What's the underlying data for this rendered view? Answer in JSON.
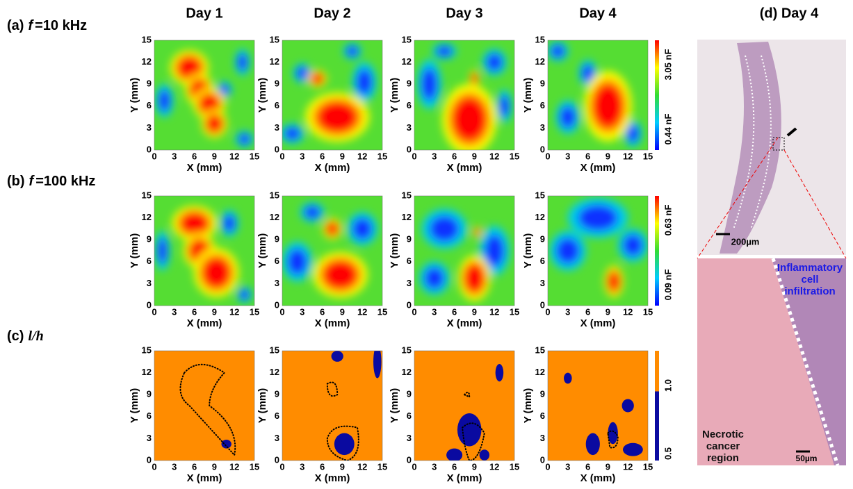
{
  "columns": [
    "Day 1",
    "Day 2",
    "Day 3",
    "Day 4"
  ],
  "panel_d_title": "(d) Day 4",
  "rows": [
    {
      "label": "(a)",
      "variable": "f",
      "setting": "=10 kHz",
      "colorbar": [
        "3.05 nF",
        "0.44 nF"
      ]
    },
    {
      "label": "(b)",
      "variable": "f",
      "setting": "=100 kHz",
      "colorbar": [
        "0.63 nF",
        "0.09 nF"
      ]
    },
    {
      "label": "(c)",
      "variable": "l/h",
      "colorbar": [
        "1.0",
        "0.5"
      ]
    }
  ],
  "axes": {
    "x_label": "X (mm)",
    "y_label": "Y (mm)",
    "ticks": [
      0,
      3,
      6,
      9,
      12,
      15
    ]
  },
  "micrograph": {
    "scale_top": "200µm",
    "region_top": [
      "Inflammatory",
      "cell",
      "infiltration"
    ],
    "region_bottom": [
      "Necrotic",
      "cancer",
      "region"
    ],
    "scale_bottom": "50µm"
  }
}
